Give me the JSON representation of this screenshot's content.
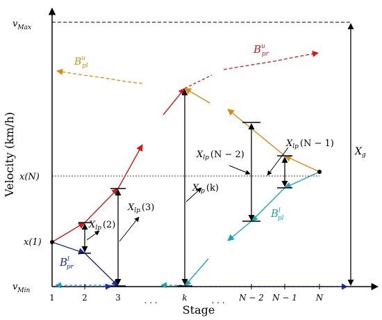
{
  "axes": {
    "ylabel": "Velocity (km/h)",
    "xlabel": "Stage"
  },
  "y_labels": {
    "vmax": {
      "main": "v",
      "sub": "Max"
    },
    "vmin": {
      "main": "v",
      "sub": "Min"
    },
    "xN": "x(N)",
    "x1": "x(1)"
  },
  "x_ticks": {
    "t1": "1",
    "t2": "2",
    "t3": "3",
    "dots1": ". . .",
    "tk": "k",
    "dots2": ". . .",
    "tN2": "N − 2",
    "tN1": "N − 1",
    "tN": "N"
  },
  "labels": {
    "Bpr_u": {
      "main": "B",
      "sup": "u",
      "sub": "pr"
    },
    "Bpl_u": {
      "main": "B",
      "sup": "u",
      "sub": "pl"
    },
    "Bpr_l": {
      "main": "B",
      "sup": "l",
      "sub": "pr"
    },
    "Bpl_l": {
      "main": "B",
      "sup": "l",
      "sub": "pl"
    },
    "Xlp2": {
      "main": "X",
      "sub": "lp",
      "arg": "(2)"
    },
    "Xlp3": {
      "main": "X",
      "sub": "lp",
      "arg": "(3)"
    },
    "Xlpk": {
      "main": "X",
      "sub": "lp",
      "arg": "(k)"
    },
    "XlpN2": {
      "main": "X",
      "sub": "lp",
      "arg": "(N − 2)"
    },
    "XlpN1": {
      "main": "X",
      "sub": "lp",
      "arg": "(N − 1)"
    },
    "Xg": {
      "main": "X",
      "sub": "g"
    }
  },
  "colors": {
    "red": "#d01818",
    "orange": "#d98a10",
    "blue": "#1628a0",
    "cyan": "#1aa6b0",
    "black": "#000000"
  }
}
